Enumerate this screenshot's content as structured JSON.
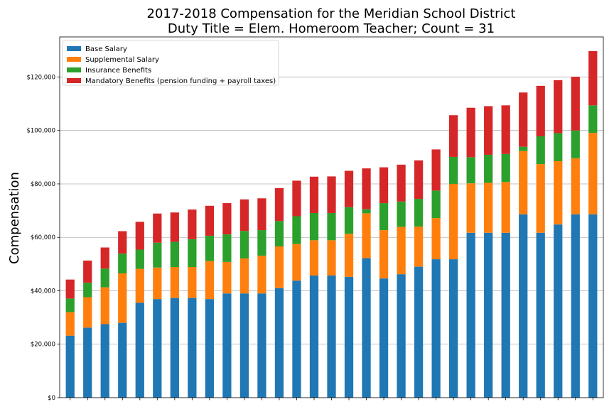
{
  "chart_data": {
    "type": "bar",
    "stacked": true,
    "title": "2017-2018 Compensation for the Meridian School District",
    "subtitle": "Duty Title = Elem. Homeroom Teacher; Count = 31",
    "xlabel": "",
    "ylabel": "Compensation",
    "ylim": [
      0,
      135000
    ],
    "yticks": [
      0,
      20000,
      40000,
      60000,
      80000,
      100000,
      120000
    ],
    "ytick_labels": [
      "$0",
      "$20,000",
      "$40,000",
      "$60,000",
      "$80,000",
      "$100,000",
      "$120,000"
    ],
    "grid": "horizontal",
    "legend_position": "top-left",
    "series": [
      {
        "name": "Base Salary",
        "color": "#1f77b4",
        "values": [
          23200,
          26200,
          27500,
          28000,
          35500,
          36900,
          37300,
          37300,
          36900,
          39000,
          39000,
          39000,
          41000,
          43800,
          45700,
          45700,
          45200,
          52200,
          44600,
          46200,
          49000,
          51800,
          51800,
          61700,
          61700,
          61700,
          68600,
          61700,
          64800,
          68600,
          68600
        ]
      },
      {
        "name": "Supplemental Salary",
        "color": "#ff7f0e",
        "values": [
          8800,
          11400,
          13800,
          18500,
          12700,
          11800,
          11600,
          11600,
          14200,
          11800,
          13100,
          14100,
          15600,
          13700,
          13200,
          13200,
          16100,
          16800,
          18100,
          17700,
          15000,
          15400,
          28200,
          18500,
          18700,
          19000,
          23700,
          25700,
          23700,
          21000,
          30500
        ]
      },
      {
        "name": "Insurance Benefits",
        "color": "#2ca02c",
        "values": [
          5100,
          5400,
          7000,
          7400,
          7200,
          9300,
          9400,
          10400,
          9500,
          10300,
          10300,
          9600,
          9500,
          10400,
          10200,
          10200,
          10000,
          1500,
          10100,
          9500,
          10400,
          10300,
          10100,
          9800,
          10500,
          10500,
          1600,
          10400,
          10500,
          10400,
          10300
        ]
      },
      {
        "name": "Mandatory Benefits (pension funding + payroll taxes)",
        "color": "#d62728",
        "values": [
          7100,
          8300,
          7900,
          8400,
          10400,
          10900,
          11000,
          11100,
          11200,
          11700,
          11800,
          11900,
          12300,
          13300,
          13600,
          13700,
          13600,
          15300,
          13400,
          13800,
          14400,
          15400,
          15600,
          18500,
          18200,
          18200,
          20300,
          18900,
          19800,
          20100,
          20300
        ]
      }
    ]
  }
}
